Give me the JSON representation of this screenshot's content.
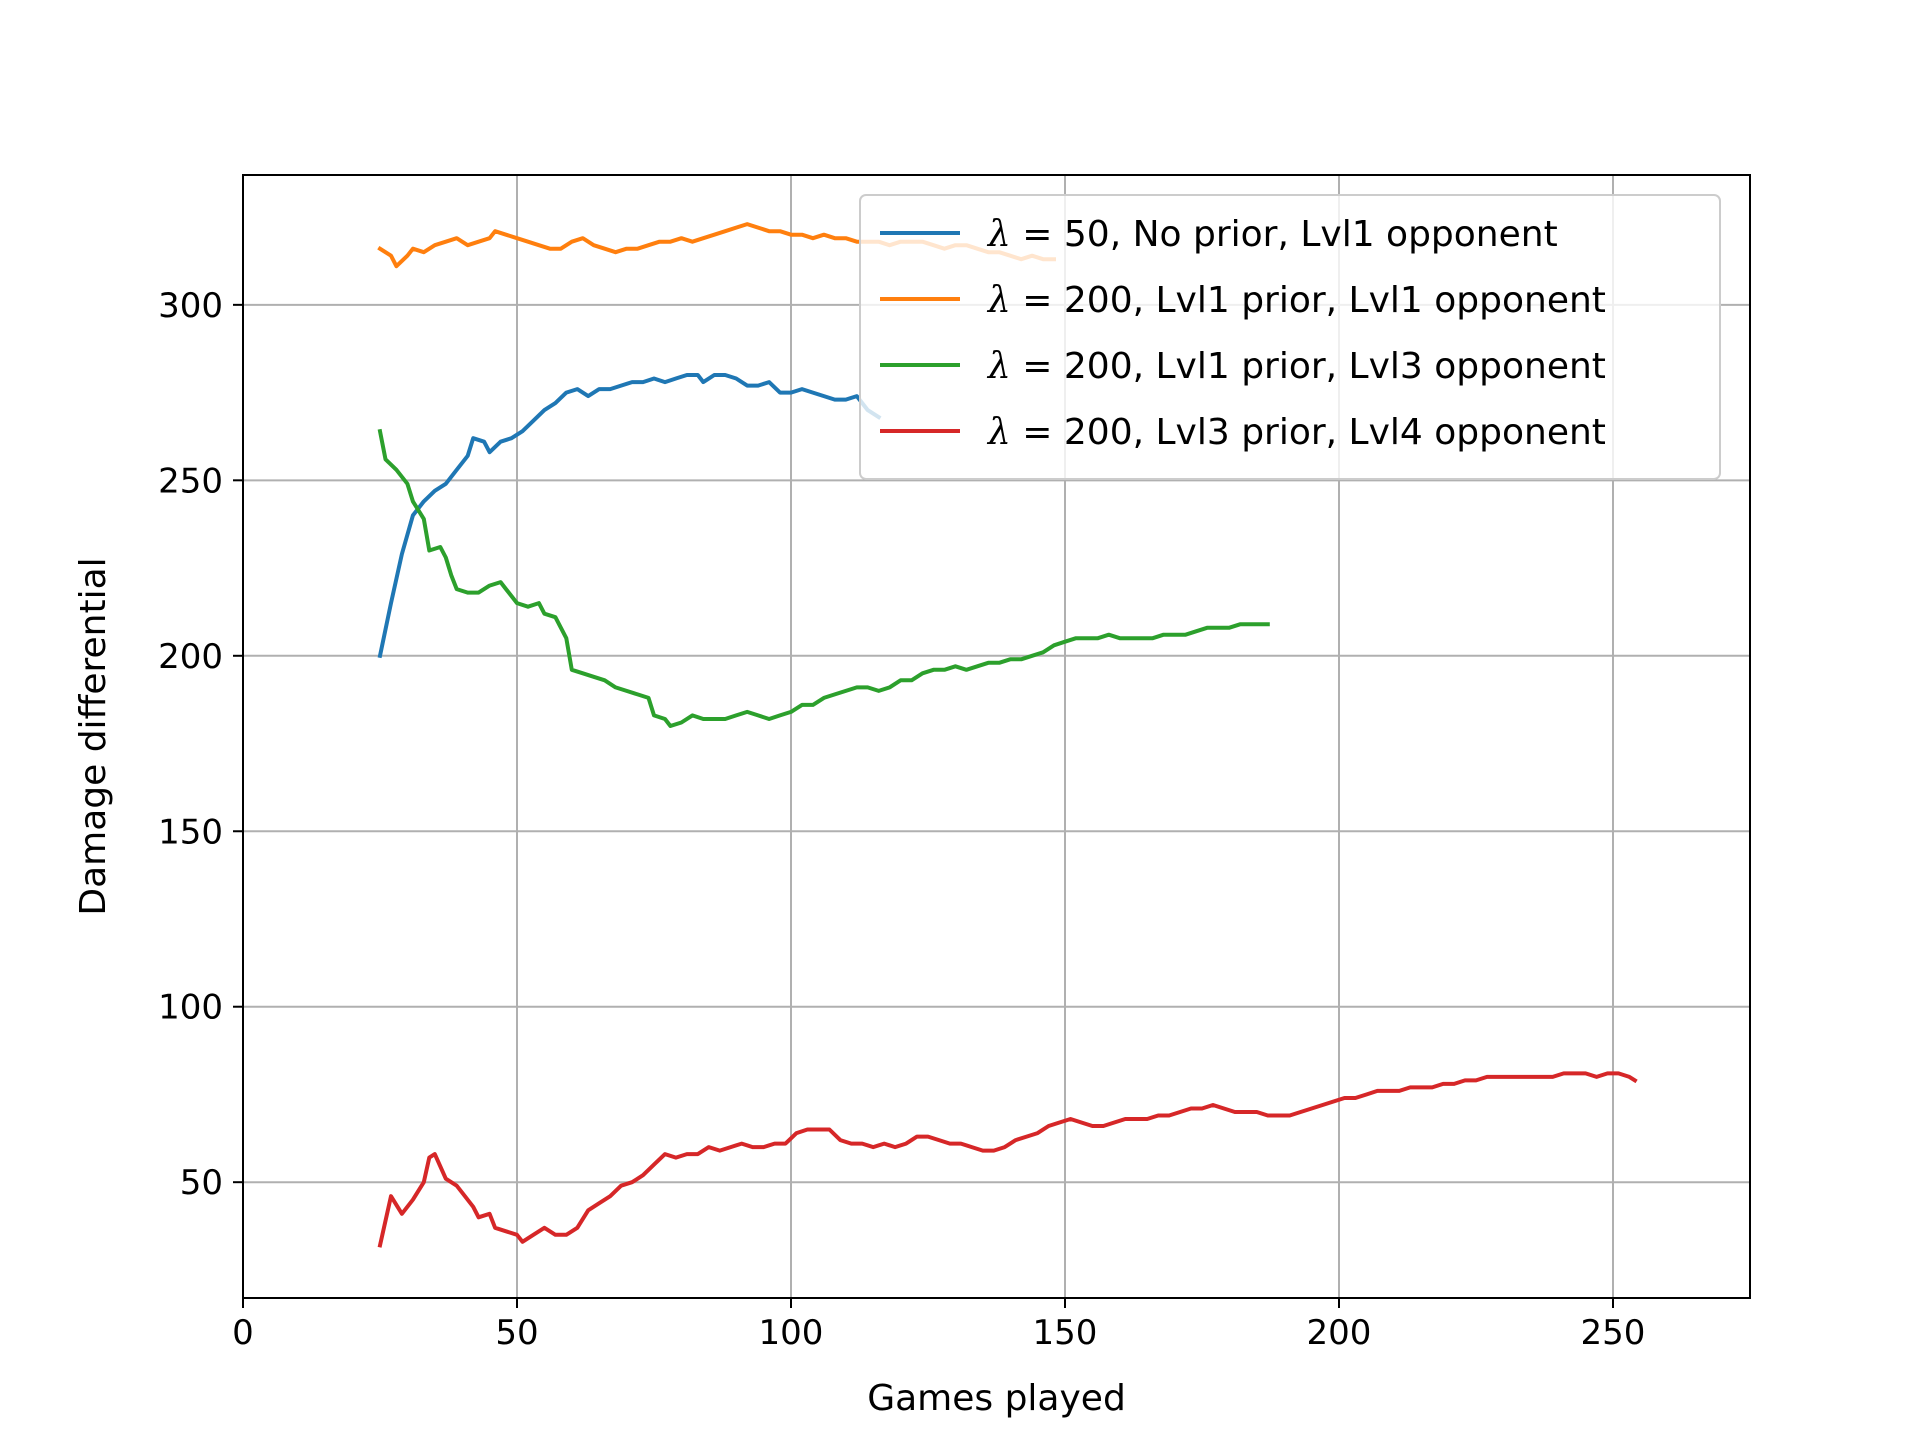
{
  "chart_data": {
    "type": "line",
    "title": "",
    "xlabel": "Games played",
    "ylabel": "Damage differential",
    "xlim": [
      0,
      275
    ],
    "ylim": [
      17,
      337
    ],
    "xticks": [
      0,
      50,
      100,
      150,
      200,
      250
    ],
    "yticks": [
      50,
      100,
      150,
      200,
      250,
      300
    ],
    "grid": true,
    "legend_position": "upper-right",
    "series": [
      {
        "name": "λ = 50, No prior, Lvl1 opponent",
        "legend_symbol": "λ",
        "legend_rest": " = 50, No prior, Lvl1 opponent",
        "color": "#1f77b4",
        "points": [
          [
            25,
            200
          ],
          [
            27,
            215
          ],
          [
            29,
            229
          ],
          [
            31,
            240
          ],
          [
            33,
            244
          ],
          [
            35,
            247
          ],
          [
            37,
            249
          ],
          [
            39,
            253
          ],
          [
            41,
            257
          ],
          [
            42,
            262
          ],
          [
            44,
            261
          ],
          [
            45,
            258
          ],
          [
            47,
            261
          ],
          [
            49,
            262
          ],
          [
            51,
            264
          ],
          [
            53,
            267
          ],
          [
            55,
            270
          ],
          [
            57,
            272
          ],
          [
            59,
            275
          ],
          [
            61,
            276
          ],
          [
            63,
            274
          ],
          [
            65,
            276
          ],
          [
            67,
            276
          ],
          [
            69,
            277
          ],
          [
            71,
            278
          ],
          [
            73,
            278
          ],
          [
            75,
            279
          ],
          [
            77,
            278
          ],
          [
            79,
            279
          ],
          [
            81,
            280
          ],
          [
            83,
            280
          ],
          [
            84,
            278
          ],
          [
            86,
            280
          ],
          [
            88,
            280
          ],
          [
            90,
            279
          ],
          [
            92,
            277
          ],
          [
            94,
            277
          ],
          [
            96,
            278
          ],
          [
            98,
            275
          ],
          [
            100,
            275
          ],
          [
            102,
            276
          ],
          [
            104,
            275
          ],
          [
            106,
            274
          ],
          [
            108,
            273
          ],
          [
            110,
            273
          ],
          [
            112,
            274
          ],
          [
            114,
            270
          ],
          [
            116,
            268
          ]
        ]
      },
      {
        "name": "λ = 200, Lvl1 prior, Lvl1 opponent",
        "legend_symbol": "λ",
        "legend_rest": " = 200, Lvl1 prior, Lvl1 opponent",
        "color": "#ff7f0e",
        "points": [
          [
            25,
            316
          ],
          [
            27,
            314
          ],
          [
            28,
            311
          ],
          [
            30,
            314
          ],
          [
            31,
            316
          ],
          [
            33,
            315
          ],
          [
            35,
            317
          ],
          [
            37,
            318
          ],
          [
            39,
            319
          ],
          [
            41,
            317
          ],
          [
            43,
            318
          ],
          [
            45,
            319
          ],
          [
            46,
            321
          ],
          [
            48,
            320
          ],
          [
            50,
            319
          ],
          [
            52,
            318
          ],
          [
            54,
            317
          ],
          [
            56,
            316
          ],
          [
            58,
            316
          ],
          [
            60,
            318
          ],
          [
            62,
            319
          ],
          [
            64,
            317
          ],
          [
            66,
            316
          ],
          [
            68,
            315
          ],
          [
            70,
            316
          ],
          [
            72,
            316
          ],
          [
            74,
            317
          ],
          [
            76,
            318
          ],
          [
            78,
            318
          ],
          [
            80,
            319
          ],
          [
            82,
            318
          ],
          [
            84,
            319
          ],
          [
            86,
            320
          ],
          [
            88,
            321
          ],
          [
            90,
            322
          ],
          [
            92,
            323
          ],
          [
            94,
            322
          ],
          [
            96,
            321
          ],
          [
            98,
            321
          ],
          [
            100,
            320
          ],
          [
            102,
            320
          ],
          [
            104,
            319
          ],
          [
            106,
            320
          ],
          [
            108,
            319
          ],
          [
            110,
            319
          ],
          [
            112,
            318
          ],
          [
            114,
            318
          ],
          [
            116,
            318
          ],
          [
            118,
            317
          ],
          [
            120,
            318
          ],
          [
            122,
            318
          ],
          [
            124,
            318
          ],
          [
            126,
            317
          ],
          [
            128,
            316
          ],
          [
            130,
            317
          ],
          [
            132,
            317
          ],
          [
            134,
            316
          ],
          [
            136,
            315
          ],
          [
            138,
            315
          ],
          [
            140,
            314
          ],
          [
            142,
            313
          ],
          [
            144,
            314
          ],
          [
            146,
            313
          ],
          [
            148,
            313
          ]
        ]
      },
      {
        "name": "λ = 200, Lvl1 prior, Lvl3 opponent",
        "legend_symbol": "λ",
        "legend_rest": " = 200, Lvl1 prior, Lvl3 opponent",
        "color": "#2ca02c",
        "points": [
          [
            25,
            264
          ],
          [
            26,
            256
          ],
          [
            28,
            253
          ],
          [
            30,
            249
          ],
          [
            31,
            244
          ],
          [
            33,
            239
          ],
          [
            34,
            230
          ],
          [
            36,
            231
          ],
          [
            37,
            228
          ],
          [
            38,
            223
          ],
          [
            39,
            219
          ],
          [
            41,
            218
          ],
          [
            43,
            218
          ],
          [
            45,
            220
          ],
          [
            47,
            221
          ],
          [
            48,
            219
          ],
          [
            50,
            215
          ],
          [
            52,
            214
          ],
          [
            54,
            215
          ],
          [
            55,
            212
          ],
          [
            57,
            211
          ],
          [
            59,
            205
          ],
          [
            60,
            196
          ],
          [
            62,
            195
          ],
          [
            64,
            194
          ],
          [
            66,
            193
          ],
          [
            68,
            191
          ],
          [
            70,
            190
          ],
          [
            72,
            189
          ],
          [
            74,
            188
          ],
          [
            75,
            183
          ],
          [
            77,
            182
          ],
          [
            78,
            180
          ],
          [
            80,
            181
          ],
          [
            82,
            183
          ],
          [
            84,
            182
          ],
          [
            86,
            182
          ],
          [
            88,
            182
          ],
          [
            90,
            183
          ],
          [
            92,
            184
          ],
          [
            94,
            183
          ],
          [
            96,
            182
          ],
          [
            98,
            183
          ],
          [
            100,
            184
          ],
          [
            102,
            186
          ],
          [
            104,
            186
          ],
          [
            106,
            188
          ],
          [
            108,
            189
          ],
          [
            110,
            190
          ],
          [
            112,
            191
          ],
          [
            114,
            191
          ],
          [
            116,
            190
          ],
          [
            118,
            191
          ],
          [
            120,
            193
          ],
          [
            122,
            193
          ],
          [
            124,
            195
          ],
          [
            126,
            196
          ],
          [
            128,
            196
          ],
          [
            130,
            197
          ],
          [
            132,
            196
          ],
          [
            134,
            197
          ],
          [
            136,
            198
          ],
          [
            138,
            198
          ],
          [
            140,
            199
          ],
          [
            142,
            199
          ],
          [
            144,
            200
          ],
          [
            146,
            201
          ],
          [
            148,
            203
          ],
          [
            150,
            204
          ],
          [
            152,
            205
          ],
          [
            154,
            205
          ],
          [
            156,
            205
          ],
          [
            158,
            206
          ],
          [
            160,
            205
          ],
          [
            162,
            205
          ],
          [
            164,
            205
          ],
          [
            166,
            205
          ],
          [
            168,
            206
          ],
          [
            170,
            206
          ],
          [
            172,
            206
          ],
          [
            174,
            207
          ],
          [
            176,
            208
          ],
          [
            178,
            208
          ],
          [
            180,
            208
          ],
          [
            182,
            209
          ],
          [
            184,
            209
          ],
          [
            187,
            209
          ]
        ]
      },
      {
        "name": "λ = 200, Lvl3 prior, Lvl4 opponent",
        "legend_symbol": "λ",
        "legend_rest": " = 200, Lvl3 prior, Lvl4 opponent",
        "color": "#d62728",
        "points": [
          [
            25,
            32
          ],
          [
            27,
            46
          ],
          [
            29,
            41
          ],
          [
            31,
            45
          ],
          [
            33,
            50
          ],
          [
            34,
            57
          ],
          [
            35,
            58
          ],
          [
            37,
            51
          ],
          [
            39,
            49
          ],
          [
            40,
            47
          ],
          [
            42,
            43
          ],
          [
            43,
            40
          ],
          [
            45,
            41
          ],
          [
            46,
            37
          ],
          [
            48,
            36
          ],
          [
            50,
            35
          ],
          [
            51,
            33
          ],
          [
            53,
            35
          ],
          [
            55,
            37
          ],
          [
            57,
            35
          ],
          [
            59,
            35
          ],
          [
            61,
            37
          ],
          [
            63,
            42
          ],
          [
            65,
            44
          ],
          [
            67,
            46
          ],
          [
            69,
            49
          ],
          [
            71,
            50
          ],
          [
            73,
            52
          ],
          [
            75,
            55
          ],
          [
            77,
            58
          ],
          [
            79,
            57
          ],
          [
            81,
            58
          ],
          [
            83,
            58
          ],
          [
            85,
            60
          ],
          [
            87,
            59
          ],
          [
            89,
            60
          ],
          [
            91,
            61
          ],
          [
            93,
            60
          ],
          [
            95,
            60
          ],
          [
            97,
            61
          ],
          [
            99,
            61
          ],
          [
            101,
            64
          ],
          [
            103,
            65
          ],
          [
            105,
            65
          ],
          [
            107,
            65
          ],
          [
            109,
            62
          ],
          [
            111,
            61
          ],
          [
            113,
            61
          ],
          [
            115,
            60
          ],
          [
            117,
            61
          ],
          [
            119,
            60
          ],
          [
            121,
            61
          ],
          [
            123,
            63
          ],
          [
            125,
            63
          ],
          [
            127,
            62
          ],
          [
            129,
            61
          ],
          [
            131,
            61
          ],
          [
            133,
            60
          ],
          [
            135,
            59
          ],
          [
            137,
            59
          ],
          [
            139,
            60
          ],
          [
            141,
            62
          ],
          [
            143,
            63
          ],
          [
            145,
            64
          ],
          [
            147,
            66
          ],
          [
            149,
            67
          ],
          [
            151,
            68
          ],
          [
            153,
            67
          ],
          [
            155,
            66
          ],
          [
            157,
            66
          ],
          [
            159,
            67
          ],
          [
            161,
            68
          ],
          [
            163,
            68
          ],
          [
            165,
            68
          ],
          [
            167,
            69
          ],
          [
            169,
            69
          ],
          [
            171,
            70
          ],
          [
            173,
            71
          ],
          [
            175,
            71
          ],
          [
            177,
            72
          ],
          [
            179,
            71
          ],
          [
            181,
            70
          ],
          [
            183,
            70
          ],
          [
            185,
            70
          ],
          [
            187,
            69
          ],
          [
            189,
            69
          ],
          [
            191,
            69
          ],
          [
            193,
            70
          ],
          [
            195,
            71
          ],
          [
            197,
            72
          ],
          [
            199,
            73
          ],
          [
            201,
            74
          ],
          [
            203,
            74
          ],
          [
            205,
            75
          ],
          [
            207,
            76
          ],
          [
            209,
            76
          ],
          [
            211,
            76
          ],
          [
            213,
            77
          ],
          [
            215,
            77
          ],
          [
            217,
            77
          ],
          [
            219,
            78
          ],
          [
            221,
            78
          ],
          [
            223,
            79
          ],
          [
            225,
            79
          ],
          [
            227,
            80
          ],
          [
            229,
            80
          ],
          [
            231,
            80
          ],
          [
            233,
            80
          ],
          [
            235,
            80
          ],
          [
            237,
            80
          ],
          [
            239,
            80
          ],
          [
            241,
            81
          ],
          [
            243,
            81
          ],
          [
            245,
            81
          ],
          [
            247,
            80
          ],
          [
            249,
            81
          ],
          [
            251,
            81
          ],
          [
            253,
            80
          ],
          [
            254,
            79
          ]
        ]
      }
    ]
  }
}
